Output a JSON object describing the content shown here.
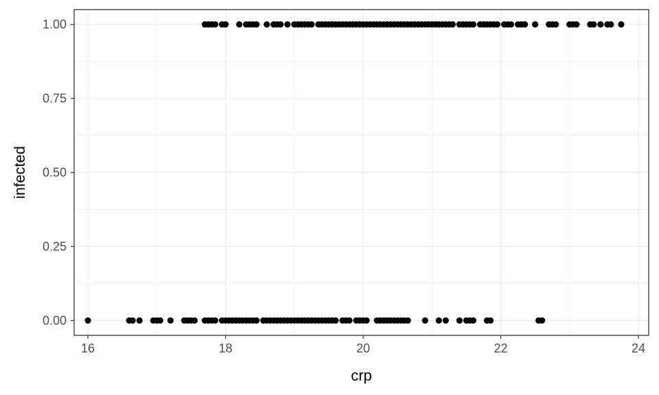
{
  "chart_data": {
    "type": "scatter",
    "title": "",
    "xlabel": "crp",
    "ylabel": "infected",
    "xlim": [
      15.8,
      24.15
    ],
    "ylim": [
      -0.05,
      1.05
    ],
    "x_ticks": [
      16,
      18,
      20,
      22,
      24
    ],
    "x_tick_labels": [
      "16",
      "18",
      "20",
      "22",
      "24"
    ],
    "y_ticks": [
      0,
      0.25,
      0.5,
      0.75,
      1
    ],
    "y_tick_labels": [
      "0.00",
      "0.25",
      "0.50",
      "0.75",
      "1.00"
    ],
    "x_minor_ticks": [
      17,
      19,
      21,
      23
    ],
    "y_minor_ticks": [
      0.125,
      0.375,
      0.625,
      0.875
    ],
    "grid": true,
    "legend": "none",
    "colors": {
      "point": "#000000",
      "grid": "#ebebeb",
      "panel_border": "#333333",
      "axis_text": "#4d4d4d",
      "axis_title": "#000000",
      "background": "#ffffff"
    },
    "series": [
      {
        "y": 1,
        "x": [
          17.7,
          17.75,
          17.8,
          17.85,
          17.95,
          18.0,
          18.2,
          18.3,
          18.35,
          18.4,
          18.45,
          18.6,
          18.7,
          18.75,
          18.8,
          18.9,
          19.0,
          19.05,
          19.1,
          19.15,
          19.2,
          19.25,
          19.35,
          19.4,
          19.45,
          19.5,
          19.55,
          19.6,
          19.65,
          19.7,
          19.75,
          19.8,
          19.85,
          19.9,
          19.95,
          20.0,
          20.05,
          20.1,
          20.15,
          20.2,
          20.25,
          20.3,
          20.35,
          20.4,
          20.45,
          20.5,
          20.55,
          20.6,
          20.65,
          20.7,
          20.75,
          20.8,
          20.85,
          20.9,
          20.95,
          21.0,
          21.05,
          21.1,
          21.15,
          21.2,
          21.25,
          21.3,
          21.4,
          21.45,
          21.5,
          21.55,
          21.6,
          21.7,
          21.75,
          21.8,
          21.85,
          21.9,
          21.95,
          22.05,
          22.1,
          22.15,
          22.25,
          22.3,
          22.35,
          22.5,
          22.7,
          22.75,
          22.8,
          23.0,
          23.05,
          23.1,
          23.3,
          23.35,
          23.45,
          23.55,
          23.6,
          23.75
        ]
      },
      {
        "y": 0,
        "x": [
          16.0,
          16.6,
          16.65,
          16.75,
          16.95,
          17.0,
          17.05,
          17.2,
          17.4,
          17.45,
          17.5,
          17.55,
          17.7,
          17.75,
          17.8,
          17.85,
          17.95,
          18.0,
          18.05,
          18.1,
          18.15,
          18.2,
          18.25,
          18.3,
          18.35,
          18.4,
          18.45,
          18.55,
          18.6,
          18.65,
          18.7,
          18.75,
          18.8,
          18.85,
          18.9,
          18.95,
          19.0,
          19.05,
          19.1,
          19.15,
          19.2,
          19.25,
          19.3,
          19.35,
          19.4,
          19.45,
          19.5,
          19.55,
          19.6,
          19.7,
          19.75,
          19.8,
          19.9,
          19.95,
          20.0,
          20.05,
          20.2,
          20.25,
          20.3,
          20.35,
          20.4,
          20.45,
          20.5,
          20.55,
          20.6,
          20.65,
          20.9,
          21.1,
          21.2,
          21.4,
          21.5,
          21.55,
          21.6,
          21.8,
          21.85,
          22.55,
          22.6
        ]
      }
    ]
  }
}
